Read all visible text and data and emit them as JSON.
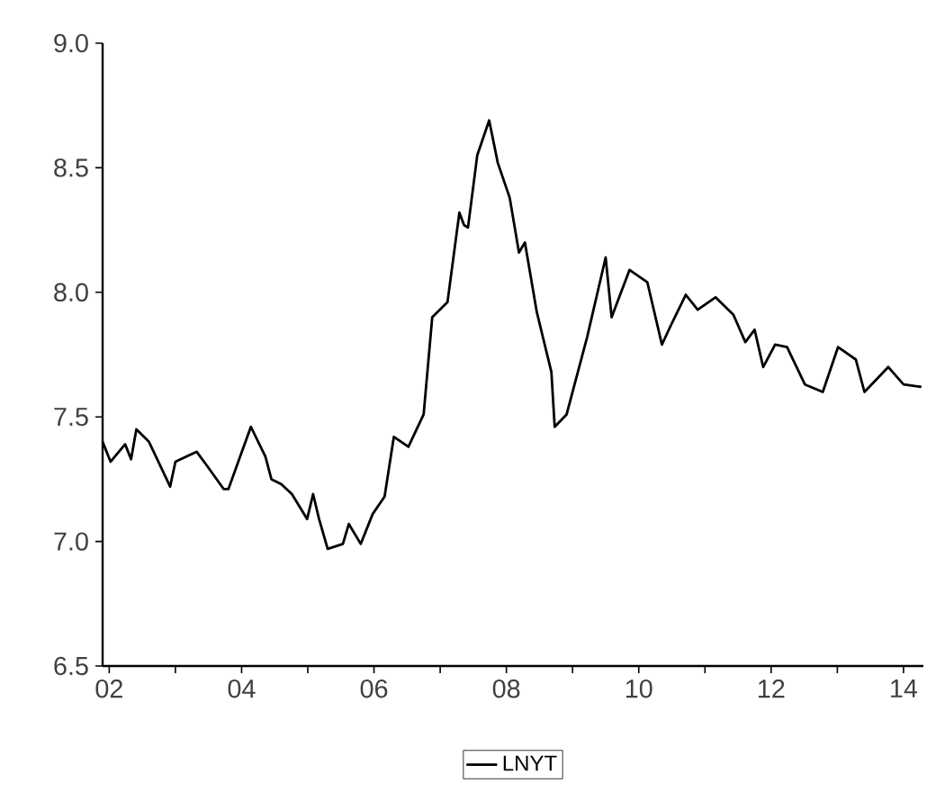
{
  "chart_data": {
    "type": "line",
    "x": [
      2001.9,
      2002.02,
      2002.24,
      2002.33,
      2002.41,
      2002.6,
      2002.92,
      2003.0,
      2003.32,
      2003.46,
      2003.73,
      2003.8,
      2004.14,
      2004.36,
      2004.45,
      2004.6,
      2004.76,
      2004.99,
      2005.08,
      2005.17,
      2005.3,
      2005.53,
      2005.62,
      2005.8,
      2005.98,
      2006.16,
      2006.3,
      2006.52,
      2006.75,
      2006.88,
      2007.11,
      2007.29,
      2007.36,
      2007.42,
      2007.56,
      2007.74,
      2007.87,
      2008.05,
      2008.19,
      2008.28,
      2008.46,
      2008.68,
      2008.73,
      2008.91,
      2009.22,
      2009.5,
      2009.59,
      2009.86,
      2010.13,
      2010.35,
      2010.49,
      2010.71,
      2010.89,
      2011.16,
      2011.43,
      2011.61,
      2011.75,
      2011.88,
      2012.06,
      2012.24,
      2012.51,
      2012.78,
      2013.01,
      2013.28,
      2013.41,
      2013.77,
      2014.0,
      2014.27
    ],
    "series": [
      {
        "name": "LNYT",
        "color": "#000000",
        "values": [
          7.4,
          7.32,
          7.39,
          7.33,
          7.45,
          7.4,
          7.22,
          7.32,
          7.36,
          7.31,
          7.21,
          7.21,
          7.46,
          7.34,
          7.25,
          7.23,
          7.19,
          7.09,
          7.19,
          7.09,
          6.97,
          6.99,
          7.07,
          6.99,
          7.11,
          7.18,
          7.42,
          7.38,
          7.51,
          7.9,
          7.96,
          8.32,
          8.27,
          8.26,
          8.55,
          8.69,
          8.52,
          8.38,
          8.16,
          8.2,
          7.92,
          7.68,
          7.46,
          7.51,
          7.82,
          8.14,
          7.9,
          8.09,
          8.04,
          7.79,
          7.87,
          7.99,
          7.93,
          7.98,
          7.91,
          7.8,
          7.85,
          7.7,
          7.79,
          7.78,
          7.63,
          7.6,
          7.78,
          7.73,
          7.6,
          7.7,
          7.63,
          7.62
        ]
      }
    ],
    "xlim": [
      2001.9,
      2014.3
    ],
    "xticks": [
      {
        "value": 2002,
        "label": "02"
      },
      {
        "value": 2003,
        "label": null
      },
      {
        "value": 2004,
        "label": "04"
      },
      {
        "value": 2005,
        "label": null
      },
      {
        "value": 2006,
        "label": "06"
      },
      {
        "value": 2007,
        "label": null
      },
      {
        "value": 2008,
        "label": "08"
      },
      {
        "value": 2009,
        "label": null
      },
      {
        "value": 2010,
        "label": "10"
      },
      {
        "value": 2011,
        "label": null
      },
      {
        "value": 2012,
        "label": "12"
      },
      {
        "value": 2013,
        "label": null
      },
      {
        "value": 2014,
        "label": "14"
      }
    ],
    "ylim": [
      6.5,
      9.0
    ],
    "yticks": [
      6.5,
      {
        "value": 7,
        "label": "7.0"
      },
      7.5,
      {
        "value": 8,
        "label": "8.0"
      },
      8.5,
      {
        "value": 9,
        "label": "9.0"
      }
    ],
    "legend": "bottom",
    "grid": false,
    "line_style": "solid"
  }
}
